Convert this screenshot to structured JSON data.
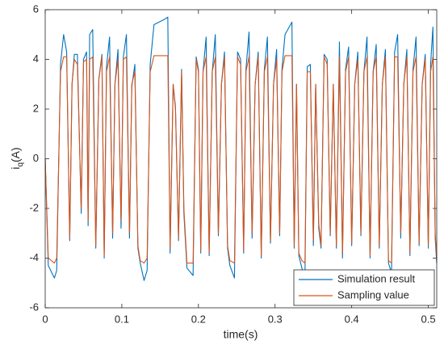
{
  "chart_data": {
    "type": "line",
    "xlabel": "time(s)",
    "ylabel": {
      "base": "i",
      "sub": "q",
      "rest": "(A)"
    },
    "xlim": [
      0,
      0.511
    ],
    "ylim": [
      -6,
      6
    ],
    "xticks": [
      0,
      0.1,
      0.2,
      0.3,
      0.4,
      0.5
    ],
    "yticks": [
      -6,
      -4,
      -2,
      0,
      2,
      4,
      6
    ],
    "grid": false,
    "legend": "southeast",
    "x": [
      0,
      0.004,
      0.012,
      0.015,
      0.02,
      0.024,
      0.028,
      0.032,
      0.035,
      0.038,
      0.042,
      0.047,
      0.05,
      0.054,
      0.056,
      0.058,
      0.062,
      0.066,
      0.07,
      0.074,
      0.077,
      0.08,
      0.084,
      0.088,
      0.091,
      0.095,
      0.099,
      0.102,
      0.106,
      0.11,
      0.113,
      0.117,
      0.121,
      0.124,
      0.129,
      0.133,
      0.137,
      0.142,
      0.155,
      0.16,
      0.163,
      0.167,
      0.17,
      0.174,
      0.178,
      0.181,
      0.185,
      0.193,
      0.197,
      0.2,
      0.203,
      0.206,
      0.21,
      0.214,
      0.218,
      0.222,
      0.226,
      0.23,
      0.234,
      0.238,
      0.241,
      0.247,
      0.251,
      0.255,
      0.259,
      0.262,
      0.266,
      0.27,
      0.274,
      0.278,
      0.282,
      0.286,
      0.29,
      0.294,
      0.298,
      0.302,
      0.306,
      0.309,
      0.313,
      0.322,
      0.325,
      0.328,
      0.331,
      0.335,
      0.339,
      0.342,
      0.346,
      0.35,
      0.353,
      0.357,
      0.36,
      0.364,
      0.368,
      0.372,
      0.376,
      0.38,
      0.384,
      0.388,
      0.392,
      0.396,
      0.4,
      0.404,
      0.408,
      0.412,
      0.416,
      0.42,
      0.424,
      0.428,
      0.432,
      0.436,
      0.44,
      0.444,
      0.448,
      0.452,
      0.456,
      0.46,
      0.464,
      0.468,
      0.472,
      0.476,
      0.48,
      0.484,
      0.488,
      0.492,
      0.496,
      0.5,
      0.503,
      0.506,
      0.509,
      0.511
    ],
    "series": [
      {
        "name": "Simulation result",
        "color": "#0072BD",
        "values": [
          0,
          -4.3,
          -4.8,
          -4.5,
          3.8,
          5.0,
          4.3,
          -3.3,
          3.0,
          4.2,
          4.2,
          -2.2,
          4.0,
          4.3,
          -2.7,
          5.0,
          5.2,
          -3.6,
          3.2,
          4.2,
          -4.0,
          3.7,
          4.9,
          -3.2,
          3.0,
          4.4,
          -2.8,
          4.1,
          5.0,
          -3.2,
          2.9,
          3.8,
          -3.6,
          -4.2,
          -4.9,
          -4.5,
          3.8,
          5.4,
          5.6,
          5.7,
          -3.8,
          3.0,
          2.1,
          -3.3,
          3.6,
          -2.2,
          -4.4,
          -4.7,
          4.1,
          3.6,
          -3.8,
          3.5,
          4.9,
          -3.9,
          3.5,
          5.0,
          -3.1,
          3.0,
          4.3,
          -3.6,
          -4.3,
          -4.8,
          4.3,
          4.0,
          -3.8,
          3.6,
          5.1,
          -3.2,
          3.0,
          4.3,
          -4.0,
          3.6,
          4.9,
          -3.4,
          3.0,
          4.4,
          -3.1,
          3.6,
          5.0,
          5.5,
          -3.6,
          3.0,
          -3.9,
          -4.4,
          -4.8,
          3.7,
          3.8,
          -3.5,
          3.0,
          -2.8,
          -3.6,
          4.2,
          4.0,
          -3.1,
          3.0,
          -3.6,
          4.7,
          -4.0,
          3.6,
          4.5,
          -3.5,
          3.0,
          4.3,
          -3.1,
          3.5,
          4.9,
          -4.0,
          3.5,
          4.6,
          -3.6,
          3.0,
          4.4,
          -4.2,
          -4.6,
          4.3,
          5.0,
          -3.2,
          3.0,
          4.4,
          -3.9,
          3.6,
          4.9,
          -3.5,
          3.0,
          4.2,
          -3.6,
          3.8,
          5.3,
          -3.2,
          -4.2
        ]
      },
      {
        "name": "Sampling value",
        "color": "#D95319",
        "values": [
          0,
          -4.0,
          -4.2,
          -4.0,
          3.5,
          4.1,
          4.1,
          -3.2,
          3.0,
          4.0,
          3.8,
          -2.0,
          3.9,
          4.0,
          -2.5,
          4.0,
          4.1,
          -3.5,
          3.2,
          4.1,
          -3.9,
          3.5,
          4.1,
          -3.0,
          3.0,
          4.0,
          -2.5,
          4.0,
          4.1,
          -3.0,
          3.0,
          3.5,
          -3.5,
          -4.1,
          -4.2,
          -4.0,
          3.5,
          4.15,
          4.15,
          4.15,
          -3.6,
          3.0,
          2.0,
          -3.2,
          3.5,
          -2.0,
          -4.2,
          -4.2,
          4.0,
          3.5,
          -3.7,
          3.5,
          4.1,
          -3.8,
          3.5,
          4.1,
          -3.0,
          3.0,
          4.1,
          -3.5,
          -4.1,
          -4.2,
          4.1,
          3.8,
          -3.7,
          3.5,
          4.1,
          -3.0,
          3.0,
          4.1,
          -3.9,
          3.5,
          4.1,
          -3.3,
          3.0,
          4.0,
          -3.0,
          3.5,
          4.15,
          4.15,
          -3.5,
          3.0,
          -3.8,
          -4.1,
          -4.2,
          3.5,
          3.5,
          -3.3,
          3.0,
          -2.6,
          -3.5,
          4.1,
          3.8,
          -3.0,
          3.0,
          -3.5,
          4.1,
          -3.8,
          3.5,
          4.1,
          -3.4,
          3.0,
          4.0,
          -3.0,
          3.5,
          4.1,
          -3.9,
          3.5,
          4.1,
          -3.5,
          3.0,
          4.1,
          -4.1,
          -4.2,
          4.1,
          4.1,
          -3.0,
          3.0,
          4.1,
          -3.8,
          3.5,
          4.1,
          -3.4,
          3.0,
          4.0,
          -3.5,
          3.5,
          4.1,
          -3.0,
          -4.0
        ]
      }
    ]
  }
}
